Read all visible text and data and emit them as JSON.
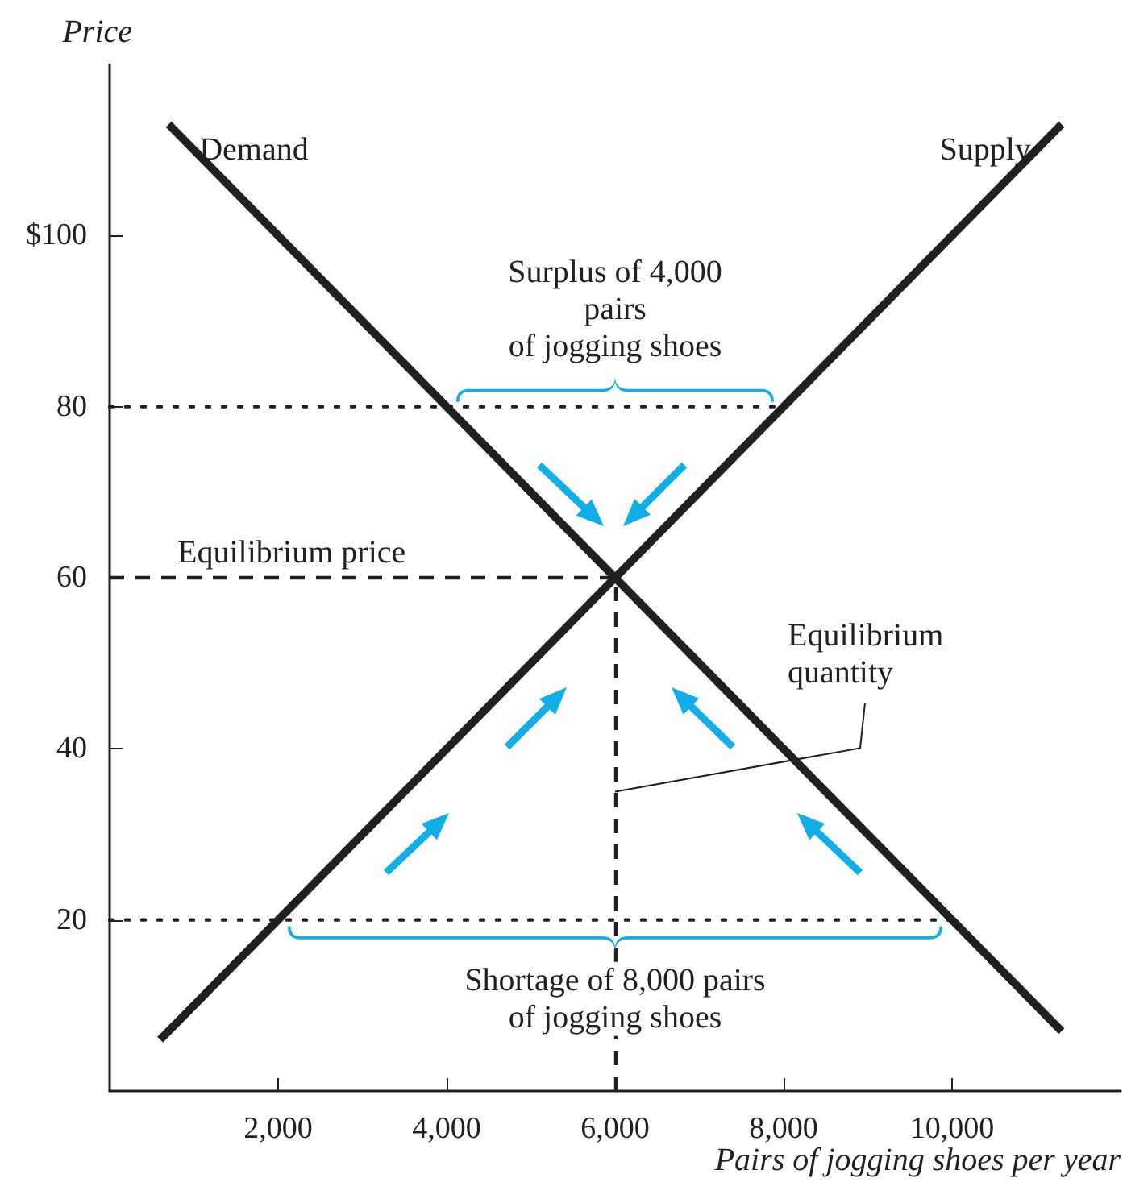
{
  "chart_data": {
    "type": "line",
    "xlabel": "Pairs of jogging shoes per year",
    "ylabel": "Price",
    "xlim": [
      0,
      12000
    ],
    "ylim": [
      0,
      120
    ],
    "xticks": [
      {
        "value": 2000,
        "label": "2,000"
      },
      {
        "value": 4000,
        "label": "4,000"
      },
      {
        "value": 6000,
        "label": "6,000"
      },
      {
        "value": 8000,
        "label": "8,000"
      },
      {
        "value": 10000,
        "label": "10,000"
      }
    ],
    "yticks": [
      20,
      40,
      60,
      80,
      {
        "value": 100,
        "label": "$100"
      }
    ],
    "grid": false,
    "legend": false,
    "marker": "none",
    "series": [
      {
        "name": "Demand",
        "color": "#231f20",
        "x": [
          700,
          11300
        ],
        "values": [
          113,
          7
        ],
        "line_style": "solid"
      },
      {
        "name": "Supply",
        "color": "#231f20",
        "x": [
          600,
          11300
        ],
        "values": [
          6,
          113
        ],
        "line_style": "solid"
      },
      {
        "color": "#231f20",
        "x": [
          0,
          8000
        ],
        "values": [
          80,
          80
        ],
        "line_style": "dotted"
      },
      {
        "color": "#231f20",
        "x": [
          0,
          10000
        ],
        "values": [
          20,
          20
        ],
        "line_style": "dotted"
      },
      {
        "color": "#231f20",
        "x": [
          0,
          6000
        ],
        "values": [
          60,
          60
        ],
        "line_style": "dashed"
      }
    ],
    "ref_lines": [
      {
        "axis": "x",
        "value": 6000,
        "color": "#231f20",
        "line_style": "dashed"
      }
    ],
    "annotations": [
      {
        "text": "Surplus of 4,000\npairs\nof jogging shoes",
        "y": 80
      },
      {
        "text": "Shortage of 8,000 pairs\nof jogging shoes",
        "y": 20
      },
      {
        "text": "Equilibrium price",
        "y": 60
      },
      {
        "text": "Equilibrium quantity",
        "x": 6000,
        "y": 35
      }
    ]
  }
}
